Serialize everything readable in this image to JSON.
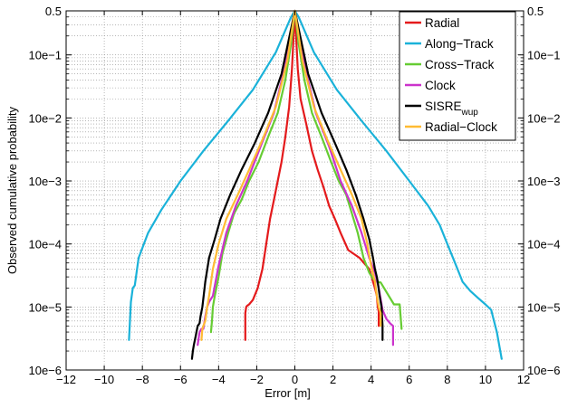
{
  "chart_data": {
    "type": "line",
    "xlabel": "Error [m]",
    "ylabel": "Observed cumulative probability",
    "xlim": [
      -12,
      12
    ],
    "ylim": [
      1e-06,
      0.5
    ],
    "yscale": "log",
    "grid": true,
    "legend_position": "top-right",
    "x_ticks": [
      -12,
      -10,
      -8,
      -6,
      -4,
      -2,
      0,
      2,
      4,
      6,
      8,
      10,
      12
    ],
    "x_tick_labels": [
      "−12",
      "−10",
      "−8",
      "−6",
      "−4",
      "−2",
      "0",
      "2",
      "4",
      "6",
      "8",
      "10",
      "12"
    ],
    "y_ticks": [
      0.5,
      0.1,
      0.01,
      0.001,
      0.0001,
      1e-05,
      1e-06
    ],
    "y_tick_labels": [
      "0.5",
      "10e−1",
      "10e−2",
      "10e−3",
      "10e−4",
      "10e−5",
      "10e−6"
    ],
    "series": [
      {
        "name": "Radial",
        "color": "#e41a1c",
        "x": [
          -2.6,
          -2.6,
          -2.55,
          -2.5,
          -2.4,
          -2.2,
          -1.95,
          -1.7,
          -1.5,
          -1.3,
          -1.1,
          -0.9,
          -0.7,
          -0.5,
          -0.3,
          -0.15,
          0,
          0.15,
          0.3,
          0.6,
          0.9,
          1.2,
          1.5,
          1.8,
          2.1,
          2.4,
          2.8,
          3.4,
          3.9,
          4.2,
          4.3,
          4.35,
          4.4,
          4.4
        ],
        "y": [
          3e-06,
          8e-06,
          1e-05,
          1.05e-05,
          1.1e-05,
          1.3e-05,
          2e-05,
          4e-05,
          0.0001,
          0.00025,
          0.0005,
          0.001,
          0.002,
          0.005,
          0.015,
          0.06,
          0.5,
          0.06,
          0.02,
          0.008,
          0.003,
          0.0015,
          0.0008,
          0.0004,
          0.00025,
          0.00015,
          8e-05,
          6e-05,
          4e-05,
          2e-05,
          1.5e-05,
          1e-05,
          8.5e-06,
          5e-06
        ]
      },
      {
        "name": "Along−Track",
        "color": "#1ab2d9",
        "x": [
          -8.7,
          -8.6,
          -8.5,
          -8.4,
          -8.2,
          -7.7,
          -7.0,
          -6.0,
          -4.8,
          -3.5,
          -2.2,
          -1.0,
          -0.2,
          0,
          0.2,
          1.0,
          2.2,
          3.5,
          4.8,
          6.0,
          7.0,
          7.6,
          8.0,
          8.4,
          8.8,
          9.2,
          9.6,
          10.0,
          10.3,
          10.6,
          10.85
        ],
        "y": [
          3e-06,
          1.2e-05,
          2e-05,
          2.2e-05,
          6e-05,
          0.00015,
          0.00035,
          0.001,
          0.003,
          0.009,
          0.028,
          0.11,
          0.4,
          0.5,
          0.4,
          0.11,
          0.028,
          0.009,
          0.003,
          0.001,
          0.0004,
          0.0002,
          0.0001,
          5e-05,
          2.5e-05,
          1.8e-05,
          1.4e-05,
          1.1e-05,
          9e-06,
          4e-06,
          1.5e-06
        ]
      },
      {
        "name": "Cross−Track",
        "color": "#66cc33",
        "x": [
          -4.4,
          -4.35,
          -4.3,
          -4.2,
          -4.0,
          -3.8,
          -3.5,
          -3.2,
          -2.8,
          -2.4,
          -1.9,
          -1.4,
          -0.9,
          -0.5,
          -0.2,
          0,
          0.2,
          0.5,
          0.9,
          1.4,
          1.9,
          2.3,
          2.7,
          3.0,
          3.3,
          3.6,
          3.9,
          4.1,
          4.3,
          4.5,
          5.2,
          5.5,
          5.6
        ],
        "y": [
          4e-06,
          6e-06,
          1e-05,
          1.5e-05,
          3e-05,
          7e-05,
          0.00015,
          0.0003,
          0.0005,
          0.001,
          0.002,
          0.005,
          0.012,
          0.04,
          0.15,
          0.5,
          0.15,
          0.04,
          0.012,
          0.005,
          0.002,
          0.001,
          0.0006,
          0.0003,
          0.00015,
          6e-05,
          3.5e-05,
          2.8e-05,
          2.5e-05,
          2.45e-05,
          1.1e-05,
          1.1e-05,
          4.5e-06
        ]
      },
      {
        "name": "Clock",
        "color": "#cc33cc",
        "x": [
          -5.1,
          -5.0,
          -4.9,
          -4.8,
          -4.7,
          -4.6,
          -4.5,
          -4.3,
          -4.0,
          -3.6,
          -3.1,
          -2.5,
          -1.8,
          -1.1,
          -0.5,
          0,
          0.5,
          1.1,
          1.8,
          2.4,
          3.0,
          3.5,
          3.9,
          4.2,
          4.4,
          4.6,
          4.8,
          5.0,
          5.15,
          5.15
        ],
        "y": [
          2.5e-06,
          4e-06,
          4.5e-06,
          4.5e-06,
          7e-06,
          1e-05,
          1.2e-05,
          1.5e-05,
          4.5e-05,
          0.00015,
          0.0004,
          0.001,
          0.0035,
          0.012,
          0.07,
          0.5,
          0.07,
          0.012,
          0.0035,
          0.001,
          0.0004,
          0.00015,
          6e-05,
          3.5e-05,
          2e-05,
          9e-06,
          6.5e-06,
          5.5e-06,
          5e-06,
          2.5e-06
        ]
      },
      {
        "name": "SISRE_wup",
        "label_main": "SISRE",
        "label_sub": "wup",
        "color": "#000000",
        "x": [
          -5.4,
          -5.35,
          -5.3,
          -5.2,
          -5.1,
          -5.0,
          -4.95,
          -4.85,
          -4.7,
          -4.5,
          -4.2,
          -3.9,
          -3.4,
          -2.8,
          -2.1,
          -1.4,
          -0.7,
          0,
          0.7,
          1.4,
          2.1,
          2.7,
          3.2,
          3.6,
          3.9,
          4.1,
          4.2,
          4.3,
          4.35,
          4.45,
          4.55,
          4.6,
          4.6
        ],
        "y": [
          1.5e-06,
          2e-06,
          2.5e-06,
          3.5e-06,
          5e-06,
          5.5e-06,
          7e-06,
          1e-05,
          2.5e-05,
          6e-05,
          0.00012,
          0.00025,
          0.0006,
          0.0015,
          0.004,
          0.012,
          0.05,
          0.5,
          0.05,
          0.012,
          0.004,
          0.0015,
          0.0006,
          0.00025,
          0.00012,
          6e-05,
          4e-05,
          3e-05,
          2.5e-05,
          1.5e-05,
          1e-05,
          5e-06,
          3e-06
        ]
      },
      {
        "name": "Radial−Clock",
        "color": "#ffbb33",
        "x": [
          -4.9,
          -4.85,
          -4.8,
          -4.7,
          -4.6,
          -4.5,
          -4.3,
          -4.0,
          -3.6,
          -3.0,
          -2.4,
          -1.7,
          -1.0,
          -0.4,
          0,
          0.4,
          1.0,
          1.7,
          2.4,
          3.0,
          3.5,
          3.8,
          4.0,
          4.2,
          4.3,
          4.4,
          4.5,
          4.5
        ],
        "y": [
          3e-06,
          4.5e-06,
          5e-06,
          6e-06,
          1e-05,
          1.5e-05,
          4e-05,
          0.0001,
          0.00025,
          0.0006,
          0.0015,
          0.0045,
          0.015,
          0.08,
          0.5,
          0.08,
          0.015,
          0.0045,
          0.0015,
          0.0006,
          0.00025,
          0.0001,
          4.5e-05,
          2.5e-05,
          1.5e-05,
          1e-05,
          8e-06,
          5e-06
        ]
      }
    ]
  }
}
